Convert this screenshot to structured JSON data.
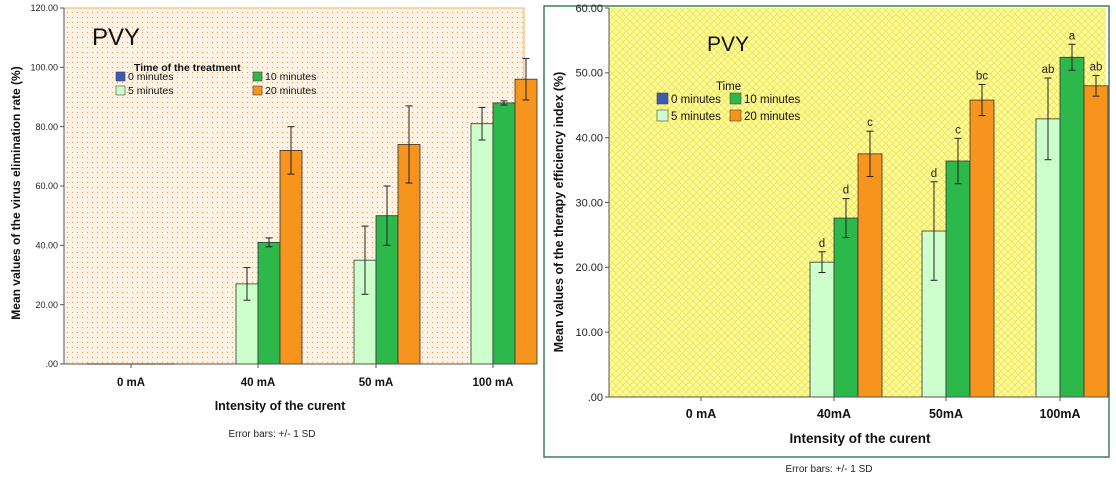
{
  "colors": {
    "page_bg": "#ffffff",
    "series_0min": "#3b5bb5",
    "series_5min": "#ccffcc",
    "series_10min": "#2db84b",
    "series_20min": "#f7941d",
    "left_plot_bg": "#fdf3e4",
    "left_plot_pattern": "#f4a45a",
    "left_plot_border": "#f0b060",
    "right_plot_bg": "#fdfd9a",
    "right_plot_pattern": "#f2e15a",
    "right_frame_border": "#3f7f5a",
    "bar_stroke": "#333333",
    "error_bar": "#222222"
  },
  "chart_data": [
    {
      "type": "bar",
      "title": "PVY",
      "legend_title": "Time of the treatment",
      "legend_placement": "top-left",
      "xlabel": "Intensity of the curent",
      "ylabel": "Mean values of the virus elimination rate (%)",
      "footnote": "Error bars: +/- 1 SD",
      "categories": [
        "0 mA",
        "40 mA",
        "50 mA",
        "100 mA"
      ],
      "ylim": [
        0,
        120
      ],
      "yticks": [
        0,
        20,
        40,
        60,
        80,
        100,
        120
      ],
      "ytick_labels": [
        ".00",
        "20.00",
        "40.00",
        "60.00",
        "80.00",
        "100.00",
        "120.00"
      ],
      "grid": false,
      "series": [
        {
          "name": "0 minutes",
          "color_key": "series_0min",
          "values": [
            0,
            null,
            null,
            null
          ],
          "errors": [
            0,
            null,
            null,
            null
          ]
        },
        {
          "name": "5 minutes",
          "color_key": "series_5min",
          "values": [
            0,
            27,
            35,
            81
          ],
          "errors": [
            0,
            5.5,
            11.5,
            5.5
          ]
        },
        {
          "name": "10 minutes",
          "color_key": "series_10min",
          "values": [
            0,
            41,
            50,
            88
          ],
          "errors": [
            0,
            1.5,
            10,
            0.7
          ]
        },
        {
          "name": "20 minutes",
          "color_key": "series_20min",
          "values": [
            0,
            72,
            74,
            96
          ],
          "errors": [
            0,
            8,
            13,
            7
          ]
        }
      ]
    },
    {
      "type": "bar",
      "title": "PVY",
      "legend_title": "Time",
      "legend_placement": "top-left",
      "xlabel": "Intensity of the curent",
      "ylabel": "Mean values of the therapy efficiency index (%)",
      "footnote": "Error bars: +/- 1 SD",
      "categories": [
        "0 mA",
        "40mA",
        "50mA",
        "100mA"
      ],
      "ylim": [
        0,
        60
      ],
      "yticks": [
        0,
        10,
        20,
        30,
        40,
        50,
        60
      ],
      "ytick_labels": [
        ".00",
        "10.00",
        "20.00",
        "30.00",
        "40.00",
        "50.00",
        "60.00"
      ],
      "grid": false,
      "series": [
        {
          "name": "0 minutes",
          "color_key": "series_0min",
          "values": [
            null,
            null,
            null,
            null
          ],
          "errors": [
            null,
            null,
            null,
            null
          ],
          "letters": [
            "",
            "",
            "",
            ""
          ]
        },
        {
          "name": "5 minutes",
          "color_key": "series_5min",
          "values": [
            null,
            20.8,
            25.6,
            42.9
          ],
          "errors": [
            null,
            1.6,
            7.6,
            6.3
          ],
          "letters": [
            "",
            "d",
            "d",
            "ab"
          ]
        },
        {
          "name": "10 minutes",
          "color_key": "series_10min",
          "values": [
            null,
            27.6,
            36.4,
            52.4
          ],
          "errors": [
            null,
            3,
            3.5,
            2
          ],
          "letters": [
            "",
            "d",
            "c",
            "a"
          ]
        },
        {
          "name": "20 minutes",
          "color_key": "series_20min",
          "values": [
            null,
            37.5,
            45.8,
            48
          ],
          "errors": [
            null,
            3.5,
            2.4,
            1.6
          ],
          "letters": [
            "",
            "c",
            "bc",
            "ab"
          ]
        }
      ]
    }
  ]
}
